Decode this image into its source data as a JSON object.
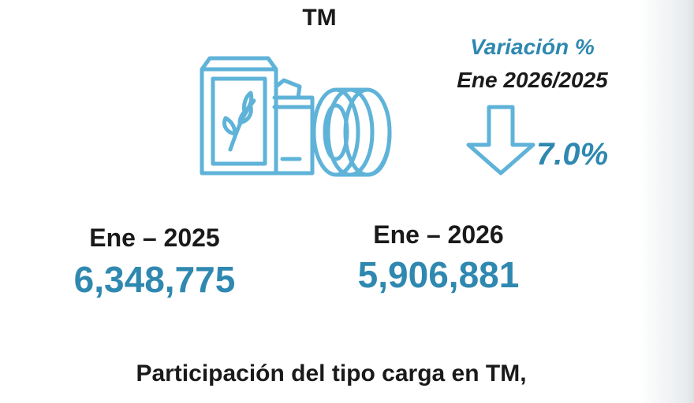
{
  "header": {
    "unit": "TM"
  },
  "variation": {
    "label": "Variación %",
    "period": "Ene 2026/2025",
    "direction": "down",
    "value": "7.0%"
  },
  "periods": [
    {
      "label": "Ene – 2025",
      "value": "6,348,775"
    },
    {
      "label": "Ene – 2026",
      "value": "5,906,881"
    }
  ],
  "footer": {
    "title": "Participación del tipo carga en TM,"
  },
  "icons": {
    "cargo": "cargo-goods-icon",
    "arrow": "arrow-down-icon"
  },
  "colors": {
    "accent": "#2f88b0",
    "icon": "#5fb3d8",
    "text": "#1a1a1a"
  }
}
